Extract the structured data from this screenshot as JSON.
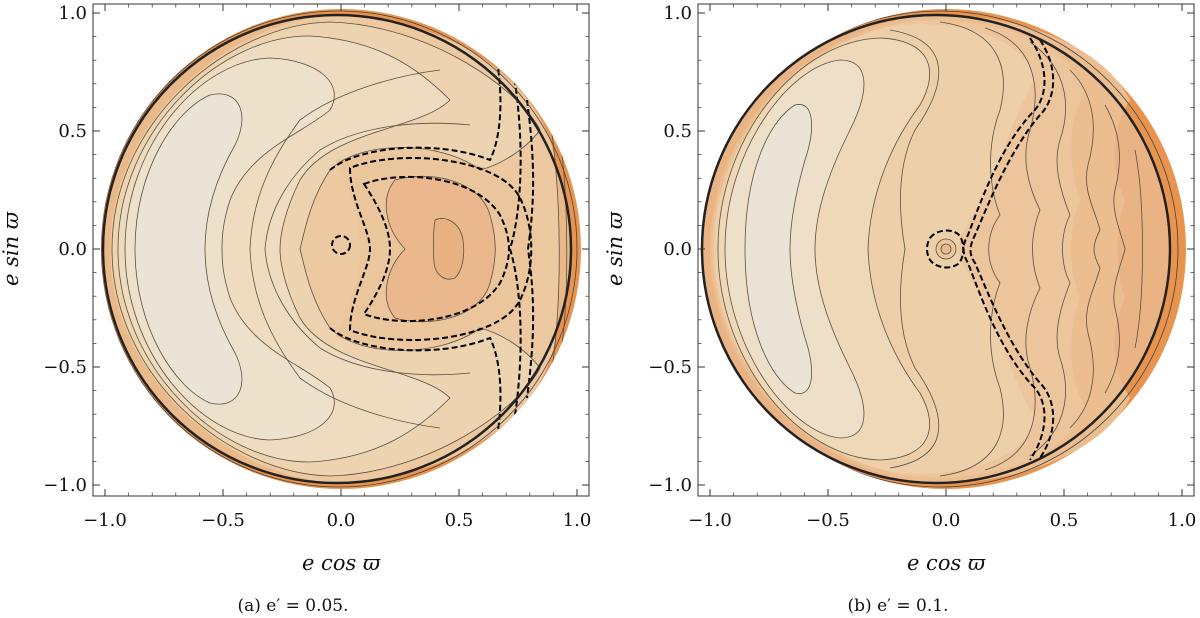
{
  "figure": {
    "panels": [
      {
        "caption": "(a) e′ = 0.05.",
        "xlabel": "e cos ϖ",
        "ylabel": "e sin ϖ"
      },
      {
        "caption": "(b) e′ = 0.1.",
        "xlabel": "e cos ϖ",
        "ylabel": "e sin ϖ"
      }
    ]
  },
  "chart_data": [
    {
      "type": "contour",
      "caption": "(a) e′ = 0.05.",
      "xlabel": "e cos ϖ",
      "ylabel": "e sin ϖ",
      "xlim": [
        -1.0,
        1.0
      ],
      "ylim": [
        -1.0,
        1.0
      ],
      "xticks": [
        "−1.0",
        "−0.5",
        "0.0",
        "0.5",
        "1.0"
      ],
      "yticks": [
        "1.0",
        "0.5",
        "0.0",
        "−0.5",
        "−1.0"
      ],
      "grid": false,
      "colors": {
        "low": "#e9e0d0",
        "high": "#e8904a",
        "line": "#5a5040",
        "separatrix": "#000000"
      },
      "features": {
        "fixed_point_x": 0.44,
        "fixed_point_y": 0.0,
        "separatrix_dashed": true
      }
    },
    {
      "type": "contour",
      "caption": "(b) e′ = 0.1.",
      "xlabel": "e cos ϖ",
      "ylabel": "e sin ϖ",
      "xlim": [
        -1.0,
        1.0
      ],
      "ylim": [
        -1.0,
        1.0
      ],
      "xticks": [
        "−1.0",
        "−0.5",
        "0.0",
        "0.5",
        "1.0"
      ],
      "yticks": [
        "1.0",
        "0.5",
        "0.0",
        "−0.5",
        "−1.0"
      ],
      "grid": false,
      "colors": {
        "low": "#e9e0d0",
        "high": "#e8904a",
        "line": "#5a5040",
        "separatrix": "#000000"
      },
      "features": {
        "fixed_point_x": 0.02,
        "fixed_point_y": 0.0,
        "separatrix_dashed": true
      }
    }
  ]
}
